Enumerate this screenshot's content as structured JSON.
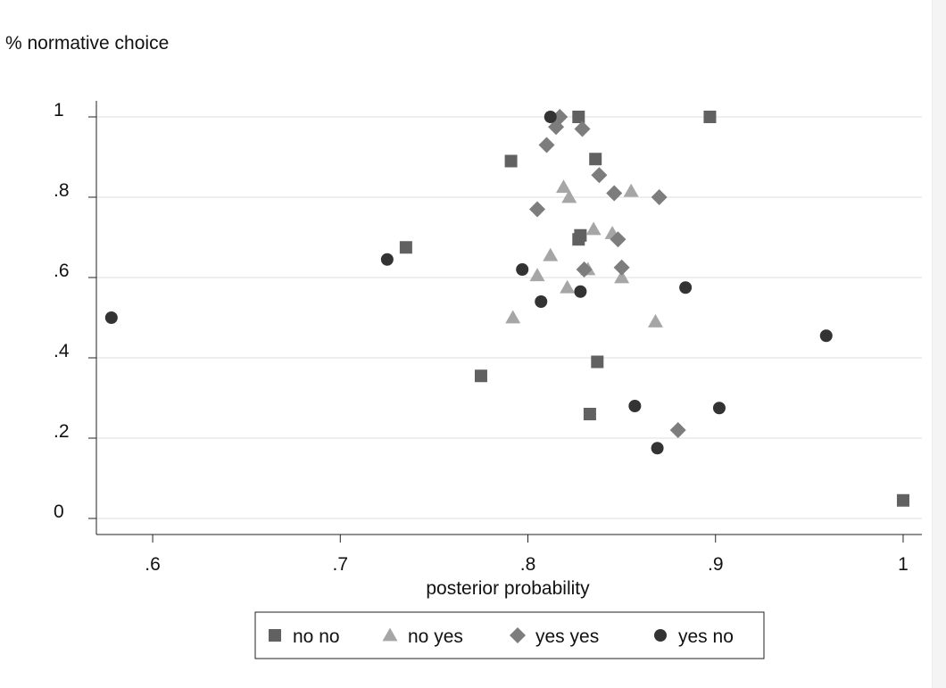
{
  "chart_data": {
    "type": "scatter",
    "ylabel": "% normative choice",
    "xlabel": "posterior probability",
    "xlim": [
      0.57,
      1.01
    ],
    "ylim": [
      -0.04,
      1.04
    ],
    "x_ticks": [
      {
        "value": 0.6,
        "label": ".6"
      },
      {
        "value": 0.7,
        "label": ".7"
      },
      {
        "value": 0.8,
        "label": ".8"
      },
      {
        "value": 0.9,
        "label": ".9"
      },
      {
        "value": 1.0,
        "label": "1"
      }
    ],
    "y_ticks": [
      {
        "value": 0,
        "label": "0"
      },
      {
        "value": 0.2,
        "label": ".2"
      },
      {
        "value": 0.4,
        "label": ".4"
      },
      {
        "value": 0.6,
        "label": ".6"
      },
      {
        "value": 0.8,
        "label": ".8"
      },
      {
        "value": 1.0,
        "label": "1"
      }
    ],
    "grid": "horizontal",
    "legend_position": "bottom",
    "series": [
      {
        "name": "no no",
        "marker": "square",
        "color": "#616161",
        "points": [
          [
            0.735,
            0.675
          ],
          [
            0.775,
            0.355
          ],
          [
            0.791,
            0.89
          ],
          [
            0.827,
            1.0
          ],
          [
            0.827,
            0.695
          ],
          [
            0.828,
            0.705
          ],
          [
            0.833,
            0.26
          ],
          [
            0.836,
            0.895
          ],
          [
            0.837,
            0.39
          ],
          [
            0.897,
            1.0
          ],
          [
            1.0,
            0.045
          ]
        ]
      },
      {
        "name": "no yes",
        "marker": "triangle",
        "color": "#a6a6a6",
        "points": [
          [
            0.792,
            0.5
          ],
          [
            0.805,
            0.605
          ],
          [
            0.812,
            0.655
          ],
          [
            0.819,
            0.825
          ],
          [
            0.821,
            0.575
          ],
          [
            0.822,
            0.8
          ],
          [
            0.832,
            0.62
          ],
          [
            0.835,
            0.72
          ],
          [
            0.845,
            0.71
          ],
          [
            0.85,
            0.6
          ],
          [
            0.855,
            0.815
          ],
          [
            0.868,
            0.49
          ]
        ]
      },
      {
        "name": "yes yes",
        "marker": "diamond",
        "color": "#7d7d7d",
        "points": [
          [
            0.805,
            0.77
          ],
          [
            0.81,
            0.93
          ],
          [
            0.815,
            0.975
          ],
          [
            0.817,
            1.0
          ],
          [
            0.829,
            0.97
          ],
          [
            0.83,
            0.62
          ],
          [
            0.838,
            0.855
          ],
          [
            0.846,
            0.81
          ],
          [
            0.848,
            0.695
          ],
          [
            0.85,
            0.625
          ],
          [
            0.87,
            0.8
          ],
          [
            0.88,
            0.22
          ]
        ]
      },
      {
        "name": "yes no",
        "marker": "circle",
        "color": "#333333",
        "points": [
          [
            0.578,
            0.5
          ],
          [
            0.725,
            0.645
          ],
          [
            0.797,
            0.62
          ],
          [
            0.807,
            0.54
          ],
          [
            0.812,
            1.0
          ],
          [
            0.828,
            0.565
          ],
          [
            0.857,
            0.28
          ],
          [
            0.869,
            0.175
          ],
          [
            0.884,
            0.575
          ],
          [
            0.902,
            0.275
          ],
          [
            0.959,
            0.455
          ]
        ]
      }
    ]
  }
}
